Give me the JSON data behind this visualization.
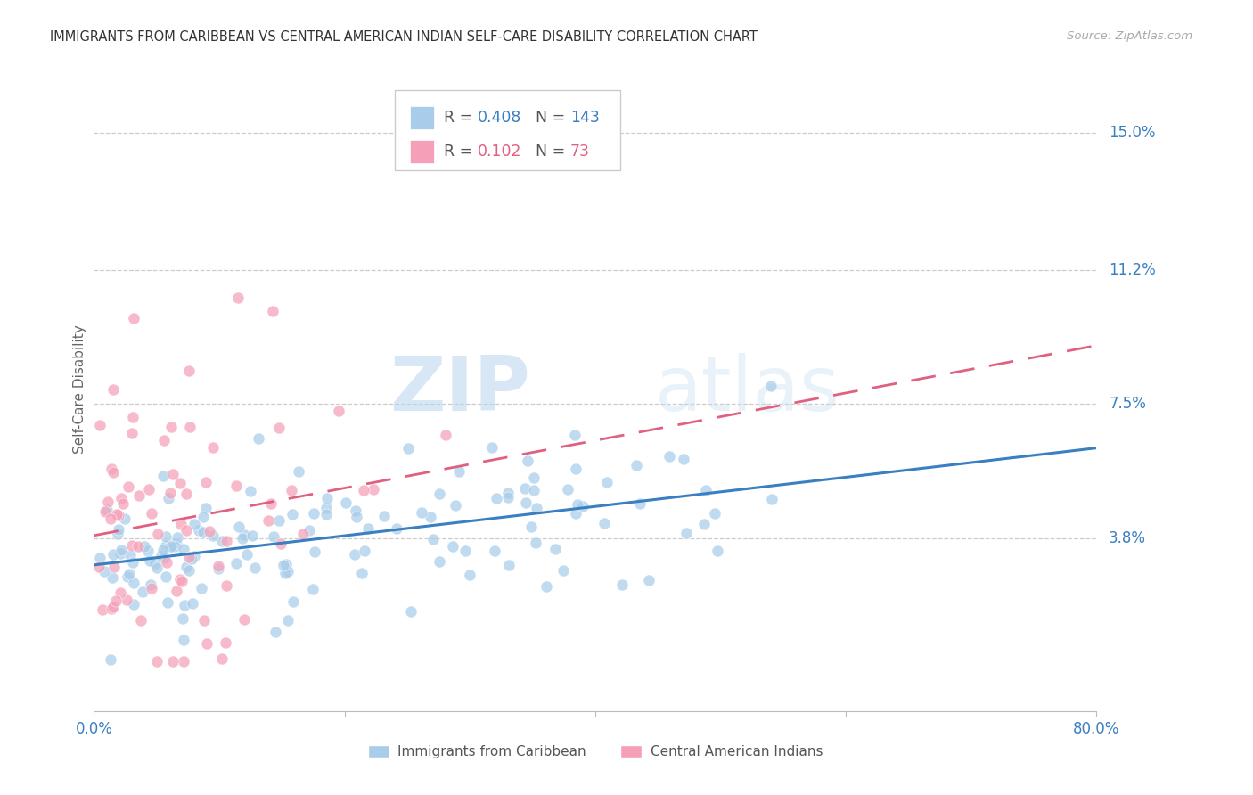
{
  "title": "IMMIGRANTS FROM CARIBBEAN VS CENTRAL AMERICAN INDIAN SELF-CARE DISABILITY CORRELATION CHART",
  "source": "Source: ZipAtlas.com",
  "ylabel": "Self-Care Disability",
  "ytick_labels": [
    "15.0%",
    "11.2%",
    "7.5%",
    "3.8%"
  ],
  "ytick_values": [
    0.15,
    0.112,
    0.075,
    0.038
  ],
  "xmin": 0.0,
  "xmax": 0.8,
  "ymin": -0.01,
  "ymax": 0.168,
  "blue_R": 0.408,
  "blue_N": 143,
  "pink_R": 0.102,
  "pink_N": 73,
  "blue_color": "#A8CCEA",
  "pink_color": "#F5A0B8",
  "blue_line_color": "#3A7FC1",
  "pink_line_color": "#E06080",
  "legend_label_blue": "Immigrants from Caribbean",
  "legend_label_pink": "Central American Indians",
  "watermark_zip": "ZIP",
  "watermark_atlas": "atlas",
  "grid_color": "#CCCCCC",
  "blue_intercept": 0.028,
  "blue_slope": 0.012,
  "pink_intercept": 0.032,
  "pink_slope": 0.015
}
